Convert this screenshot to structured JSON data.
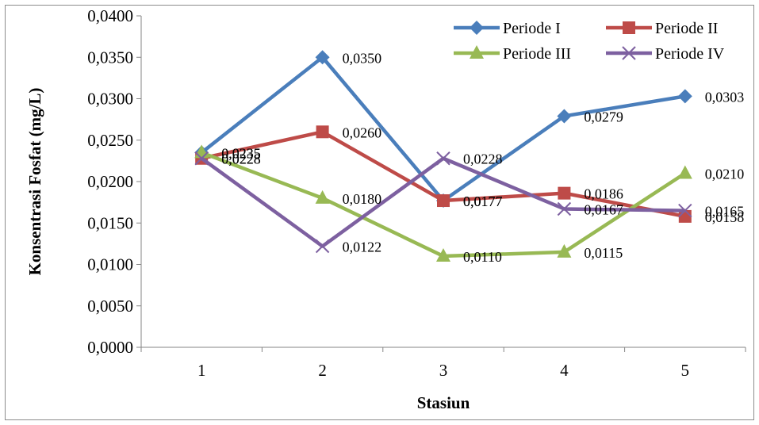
{
  "chart_data": {
    "type": "line",
    "title": "",
    "xlabel": "Stasiun",
    "ylabel": "Konsentrasi Fosfat (mg/L)",
    "categories": [
      "1",
      "2",
      "3",
      "4",
      "5"
    ],
    "ylim": [
      0,
      0.04
    ],
    "yticks": [
      "0,0000",
      "0,0050",
      "0,0100",
      "0,0150",
      "0,0200",
      "0,0250",
      "0,0300",
      "0,0350",
      "0,0400"
    ],
    "grid": false,
    "legend_position": "top-right",
    "series": [
      {
        "name": "Periode I",
        "color": "#4A7EBB",
        "marker": "diamond",
        "values": [
          0.0235,
          0.035,
          0.0177,
          0.0279,
          0.0303
        ],
        "labels": [
          "0,0235",
          "0,0350",
          "0,0177",
          "0,0279",
          "0,0303"
        ]
      },
      {
        "name": "Periode II",
        "color": "#BE4B48",
        "marker": "square",
        "values": [
          0.0228,
          0.026,
          0.0177,
          0.0186,
          0.0158
        ],
        "labels": [
          "0,0228",
          "0,0260",
          "0,0177",
          "0,0186",
          "0,0158"
        ]
      },
      {
        "name": "Periode III",
        "color": "#98B954",
        "marker": "triangle",
        "values": [
          0.0235,
          0.018,
          0.011,
          0.0115,
          0.021
        ],
        "labels": [
          "0,0235",
          "0,0180",
          "0,0110",
          "0,0115",
          "0,0210"
        ]
      },
      {
        "name": "Periode IV",
        "color": "#7D60A0",
        "marker": "x",
        "values": [
          0.0228,
          0.0122,
          0.0228,
          0.0167,
          0.0165
        ],
        "labels": [
          "0,0228",
          "0,0122",
          "0,0228",
          "0,0167",
          "0,0165"
        ]
      }
    ]
  }
}
